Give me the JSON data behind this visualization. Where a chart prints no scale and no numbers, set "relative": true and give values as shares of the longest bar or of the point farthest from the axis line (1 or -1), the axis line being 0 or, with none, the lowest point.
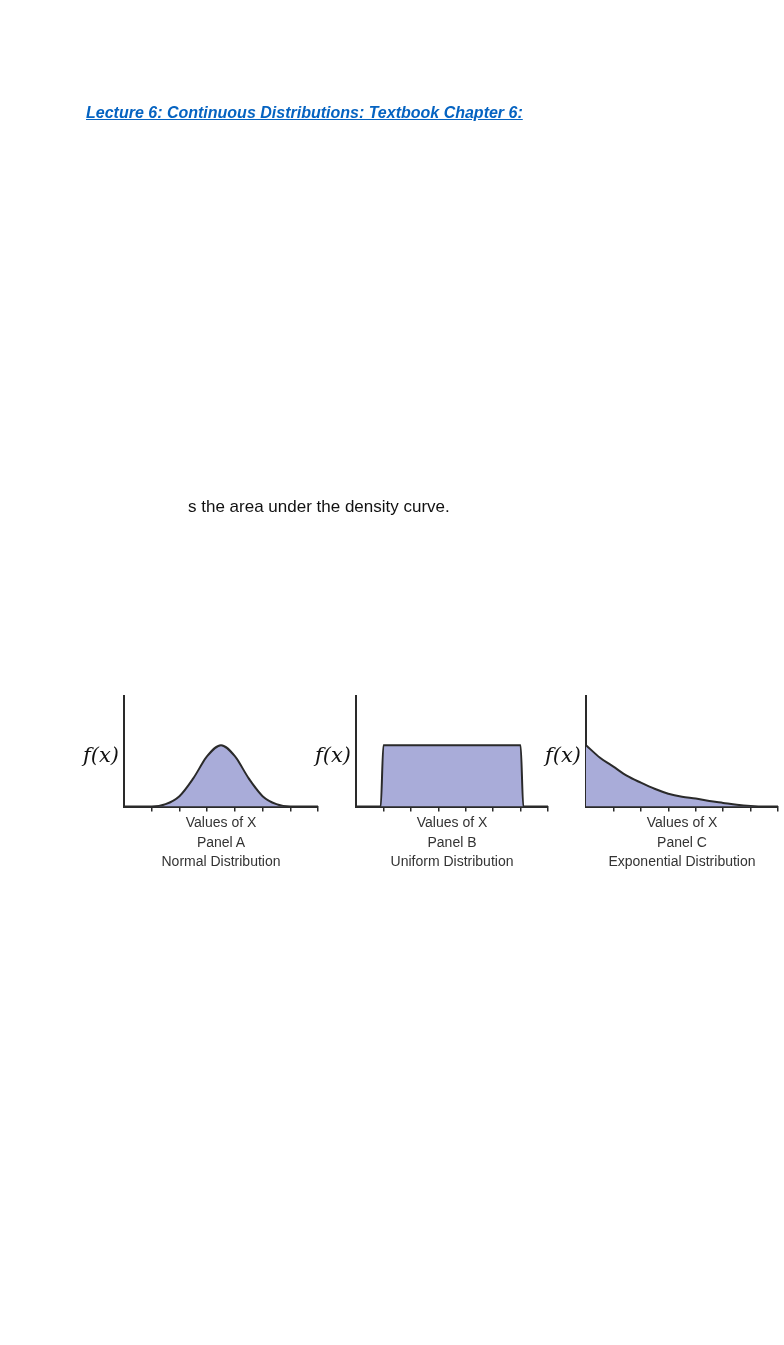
{
  "chart_data": [
    {
      "type": "area",
      "title": "Panel A",
      "subtitle": "Normal Distribution",
      "xlabel": "Values of X",
      "ylabel": "f(x)",
      "relative": true,
      "grid": false,
      "annotations": [
        "Lecture 6: Continuous Distributions: Textbook Chapter 6:",
        "s the area under the density curve."
      ],
      "categories": [
        null,
        null,
        null,
        null,
        null,
        null,
        null,
        null,
        null,
        null,
        null,
        null,
        null,
        null,
        null
      ],
      "series": [
        {
          "color": "#a9acd9",
          "values": [
            0,
            0,
            0,
            0.04,
            0.17,
            0.46,
            0.82,
            1,
            0.82,
            0.46,
            0.17,
            0.04,
            0,
            0,
            0
          ]
        }
      ]
    },
    {
      "type": "area",
      "title": "Panel B",
      "subtitle": "Uniform Distribution",
      "xlabel": "Values of X",
      "ylabel": "f(x)",
      "relative": true,
      "grid": false,
      "categories": [
        null,
        null,
        null,
        null,
        null,
        null,
        null,
        null,
        null,
        null,
        null,
        null,
        null,
        null,
        null,
        null,
        null,
        null,
        null,
        null,
        null,
        null,
        null,
        null,
        null,
        null,
        null,
        null,
        null,
        null,
        null,
        null,
        null,
        null,
        null,
        null,
        null,
        null,
        null,
        null,
        null,
        null,
        null,
        null,
        null,
        null,
        null,
        null,
        null,
        null,
        null,
        null,
        null,
        null,
        null,
        null,
        null,
        null,
        null,
        null,
        null,
        null,
        null,
        null,
        null,
        null,
        null,
        null,
        null,
        null,
        null
      ],
      "series": [
        {
          "color": "#a9acd9",
          "values": [
            0,
            0,
            0,
            0,
            0,
            0,
            0,
            0,
            0,
            0,
            1,
            1,
            1,
            1,
            1,
            1,
            1,
            1,
            1,
            1,
            1,
            1,
            1,
            1,
            1,
            1,
            1,
            1,
            1,
            1,
            1,
            1,
            1,
            1,
            1,
            1,
            1,
            1,
            1,
            1,
            1,
            1,
            1,
            1,
            1,
            1,
            1,
            1,
            1,
            1,
            1,
            1,
            1,
            1,
            1,
            1,
            1,
            1,
            1,
            1,
            1,
            0,
            0,
            0,
            0,
            0,
            0,
            0,
            0,
            0,
            0
          ]
        }
      ]
    },
    {
      "type": "area",
      "title": "Panel C",
      "subtitle": "Exponential Distribution",
      "xlabel": "Values of X",
      "ylabel": "f(x)",
      "relative": true,
      "grid": false,
      "categories": [
        null,
        null,
        null,
        null,
        null,
        null,
        null,
        null,
        null,
        null,
        null,
        null,
        null,
        null,
        null
      ],
      "series": [
        {
          "color": "#a9acd9",
          "values": [
            1,
            0.8,
            0.65,
            0.5,
            0.39,
            0.29,
            0.21,
            0.16,
            0.13,
            0.09,
            0.06,
            0.03,
            0.01,
            0,
            0
          ]
        }
      ]
    }
  ]
}
